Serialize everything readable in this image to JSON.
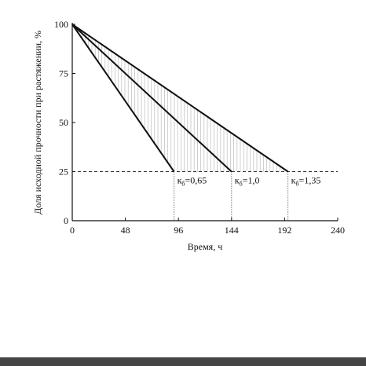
{
  "chart_data": {
    "type": "line",
    "x_label": "Время, ч",
    "y_label": "Доля исходной прочности при растяжении, %",
    "xlim": [
      0,
      240
    ],
    "xticks": [
      0,
      48,
      96,
      144,
      192,
      240
    ],
    "ylim": [
      0,
      100
    ],
    "yticks": [
      0,
      25,
      50,
      75,
      100
    ],
    "threshold": 25,
    "series": [
      {
        "color": "#111111",
        "x": [
          0,
          92
        ],
        "values": [
          100,
          25
        ]
      },
      {
        "color": "#111111",
        "x": [
          0,
          144
        ],
        "values": [
          100,
          25
        ]
      },
      {
        "color": "#111111",
        "x": [
          0,
          195
        ],
        "values": [
          100,
          25
        ]
      }
    ],
    "annotations": [
      {
        "symbol": "к",
        "subscript": "б",
        "text": "=0,65"
      },
      {
        "symbol": "к",
        "subscript": "б",
        "text": "=1,0"
      },
      {
        "symbol": "к",
        "subscript": "б",
        "text": "=1,35"
      }
    ]
  }
}
